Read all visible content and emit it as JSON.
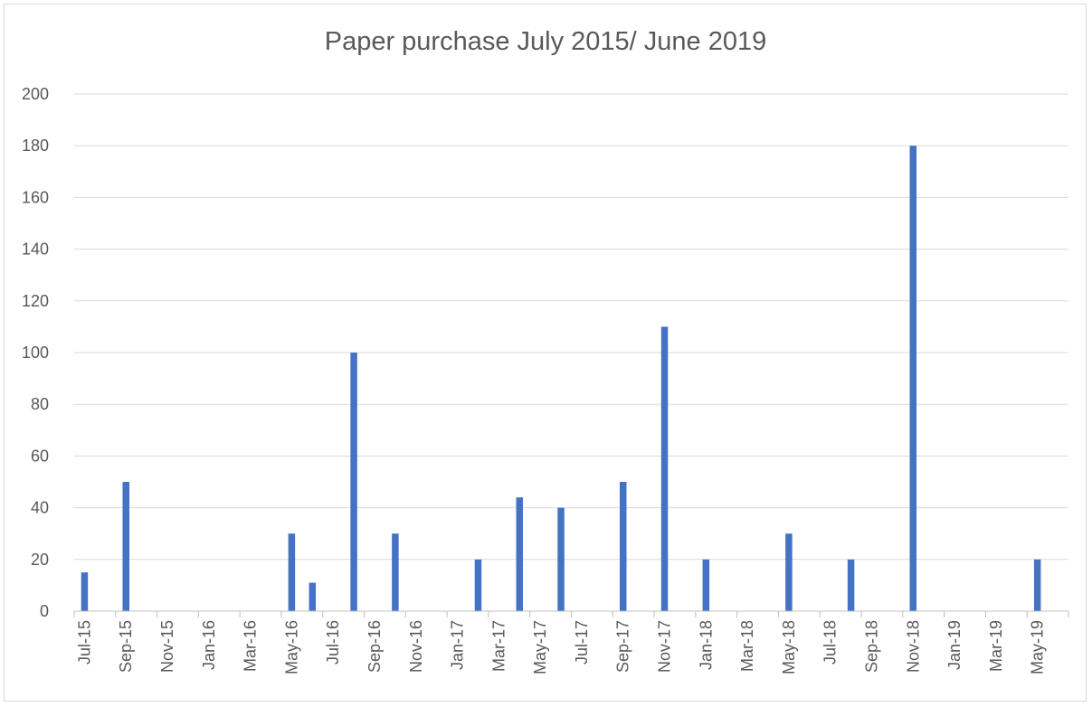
{
  "chart_data": {
    "type": "bar",
    "title": "Paper purchase July 2015/ June 2019",
    "xlabel": "",
    "ylabel": "",
    "ylim": [
      0,
      200
    ],
    "yticks": [
      0,
      20,
      40,
      60,
      80,
      100,
      120,
      140,
      160,
      180,
      200
    ],
    "x_axis": {
      "start": "2015-07",
      "end": "2019-06",
      "tick_every_months": 2
    },
    "xtick_labels": [
      "Jul-15",
      "Sep-15",
      "Nov-15",
      "Jan-16",
      "Mar-16",
      "May-16",
      "Jul-16",
      "Sep-16",
      "Nov-16",
      "Jan-17",
      "Mar-17",
      "May-17",
      "Jul-17",
      "Sep-17",
      "Nov-17",
      "Jan-18",
      "Mar-18",
      "May-18",
      "Jul-18",
      "Sep-18",
      "Nov-18",
      "Jan-19",
      "Mar-19",
      "May-19"
    ],
    "grid": true,
    "legend": "none",
    "bar_color": "#4472c4",
    "series": [
      {
        "points": [
          {
            "x": "2015-07",
            "y": 15
          },
          {
            "x": "2015-09",
            "y": 50
          },
          {
            "x": "2016-05",
            "y": 30
          },
          {
            "x": "2016-06",
            "y": 11
          },
          {
            "x": "2016-08",
            "y": 100
          },
          {
            "x": "2016-10",
            "y": 30
          },
          {
            "x": "2017-02",
            "y": 20
          },
          {
            "x": "2017-04",
            "y": 44
          },
          {
            "x": "2017-06",
            "y": 40
          },
          {
            "x": "2017-09",
            "y": 50
          },
          {
            "x": "2017-11",
            "y": 110
          },
          {
            "x": "2018-01",
            "y": 20
          },
          {
            "x": "2018-05",
            "y": 30
          },
          {
            "x": "2018-08",
            "y": 20
          },
          {
            "x": "2018-11",
            "y": 180
          },
          {
            "x": "2019-05",
            "y": 20
          }
        ]
      }
    ]
  }
}
